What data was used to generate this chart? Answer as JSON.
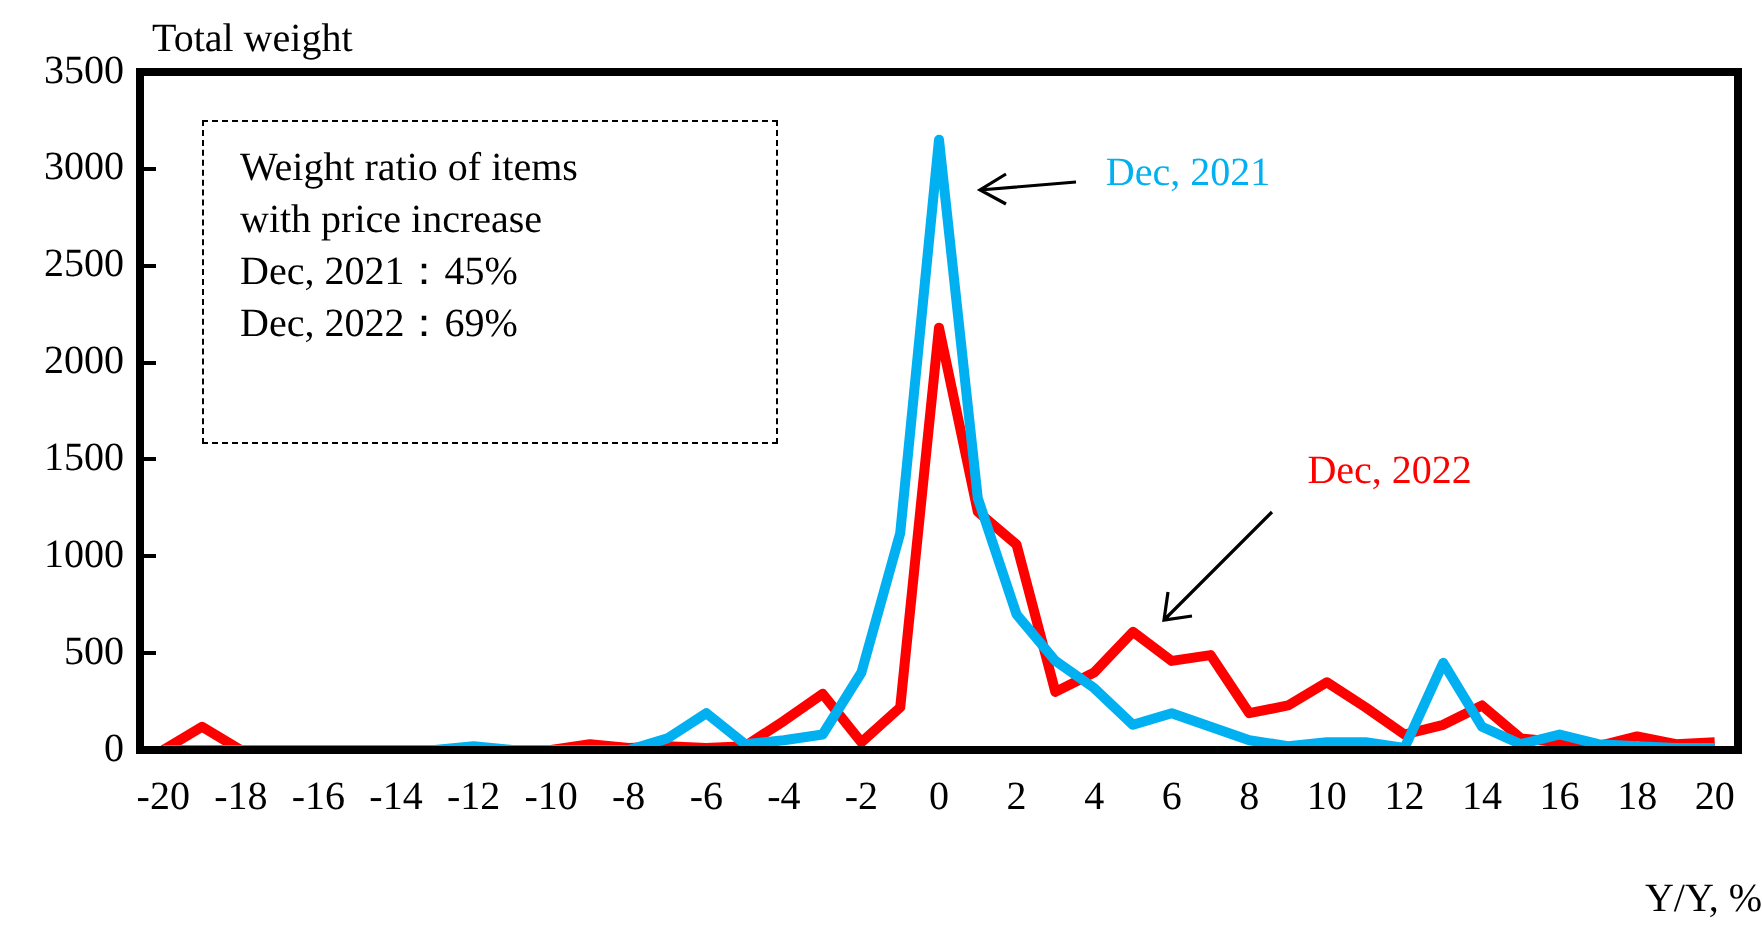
{
  "chart_data": {
    "type": "line",
    "xlabel": "Y/Y, %",
    "ylabel": "Total weight",
    "x": [
      -20,
      -19,
      -18,
      -17,
      -16,
      -15,
      -14,
      -13,
      -12,
      -11,
      -10,
      -9,
      -8,
      -7,
      -6,
      -5,
      -4,
      -3,
      -2,
      -1,
      0,
      1,
      2,
      3,
      4,
      5,
      6,
      7,
      8,
      9,
      10,
      11,
      12,
      13,
      14,
      15,
      16,
      17,
      18,
      19,
      20
    ],
    "series": [
      {
        "name": "Dec, 2021",
        "color": "#00b0f0",
        "values": [
          0,
          0,
          0,
          0,
          0,
          0,
          0,
          0,
          20,
          0,
          0,
          0,
          0,
          60,
          190,
          30,
          50,
          80,
          400,
          1120,
          3150,
          1300,
          700,
          460,
          320,
          130,
          190,
          120,
          50,
          20,
          40,
          40,
          10,
          450,
          120,
          30,
          80,
          30,
          20,
          10,
          10
        ]
      },
      {
        "name": "Dec, 2022",
        "color": "#ff0000",
        "values": [
          0,
          120,
          0,
          0,
          0,
          0,
          0,
          0,
          0,
          0,
          0,
          30,
          10,
          20,
          10,
          20,
          150,
          290,
          40,
          220,
          2180,
          1230,
          1060,
          300,
          400,
          610,
          460,
          490,
          190,
          230,
          350,
          220,
          80,
          130,
          230,
          60,
          40,
          20,
          70,
          30,
          40
        ]
      }
    ],
    "xlim": [
      -20.6,
      20.6
    ],
    "xticks": [
      -20,
      -18,
      -16,
      -14,
      -12,
      -10,
      -8,
      -6,
      -4,
      -2,
      0,
      2,
      4,
      6,
      8,
      10,
      12,
      14,
      16,
      18,
      20
    ],
    "ylim": [
      0,
      3500
    ],
    "yticks": [
      0,
      500,
      1000,
      1500,
      2000,
      2500,
      3000,
      3500
    ],
    "grid": false,
    "legend": false,
    "marker": "none",
    "line_style": "solid",
    "annotations": [
      "Weight ratio of items with price increase",
      "Dec, 2021：45%",
      "Dec, 2022：69%"
    ]
  }
}
